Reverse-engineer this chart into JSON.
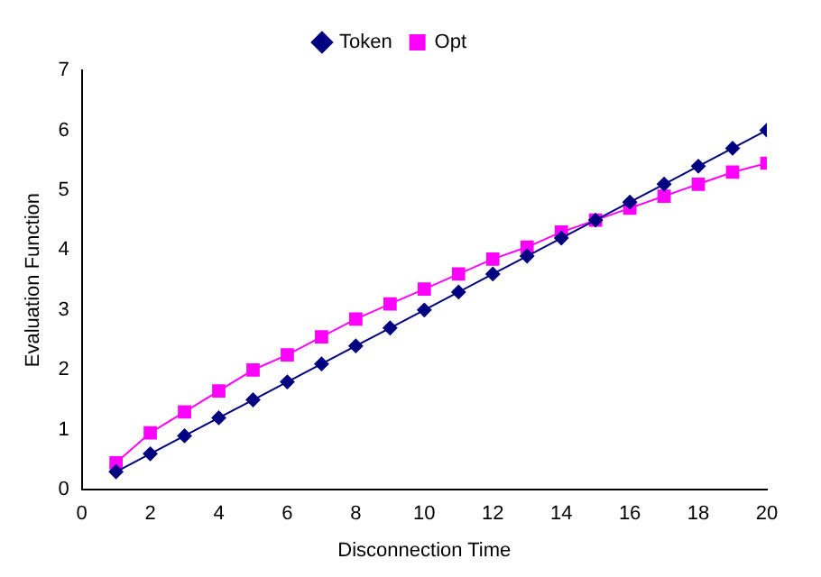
{
  "chart_data": {
    "type": "line",
    "xlabel": "Disconnection Time",
    "ylabel": "Evaluation Function",
    "x": [
      1,
      2,
      3,
      4,
      5,
      6,
      7,
      8,
      9,
      10,
      11,
      12,
      13,
      14,
      15,
      16,
      17,
      18,
      19,
      20
    ],
    "series": [
      {
        "name": "Token",
        "color": "#000080",
        "marker": "diamond",
        "values": [
          0.3,
          0.6,
          0.9,
          1.2,
          1.5,
          1.8,
          2.1,
          2.4,
          2.7,
          3.0,
          3.3,
          3.6,
          3.9,
          4.2,
          4.5,
          4.8,
          5.1,
          5.4,
          5.7,
          6.0
        ]
      },
      {
        "name": "Opt",
        "color": "#ff00ff",
        "marker": "square",
        "values": [
          0.45,
          0.95,
          1.3,
          1.65,
          2.0,
          2.25,
          2.55,
          2.85,
          3.1,
          3.35,
          3.6,
          3.85,
          4.05,
          4.3,
          4.5,
          4.7,
          4.9,
          5.1,
          5.3,
          5.45
        ]
      }
    ],
    "xlim": [
      0,
      20
    ],
    "xticks": [
      0,
      2,
      4,
      6,
      8,
      10,
      12,
      14,
      16,
      18,
      20
    ],
    "ylim": [
      0,
      7
    ],
    "yticks": [
      0,
      1,
      2,
      3,
      4,
      5,
      6,
      7
    ],
    "grid": false,
    "legend": "top",
    "line_style": "solid"
  }
}
